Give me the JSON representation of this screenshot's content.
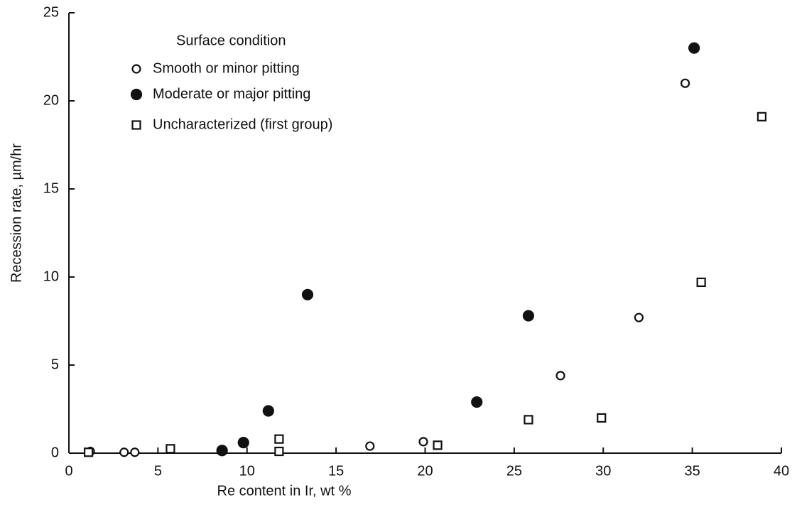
{
  "chart_data": {
    "type": "scatter",
    "x_label": "Re content in Ir, wt %",
    "y_label": "Recession rate, µm/hr",
    "legend_title": "Surface condition",
    "legend_location": "upper left",
    "xlim": [
      0,
      40
    ],
    "xticks": [
      0,
      5,
      10,
      15,
      20,
      25,
      30,
      35,
      40
    ],
    "ylim": [
      0,
      25
    ],
    "yticks": [
      0,
      5,
      10,
      15,
      20,
      25
    ],
    "grid": false,
    "series": [
      {
        "name": "Smooth or minor pitting",
        "color": "#111111",
        "marker": "open-circle",
        "x": [
          1.2,
          3.1,
          3.7,
          16.9,
          19.9,
          27.6,
          32.0,
          34.6
        ],
        "values": [
          0.1,
          0.05,
          0.05,
          0.4,
          0.65,
          4.4,
          7.7,
          21.0
        ]
      },
      {
        "name": "Moderate or major pitting",
        "color": "#111111",
        "marker": "filled-circle",
        "x": [
          8.6,
          9.8,
          11.2,
          13.4,
          22.9,
          25.8,
          35.1
        ],
        "values": [
          0.15,
          0.6,
          2.4,
          9.0,
          2.9,
          7.8,
          23.0
        ]
      },
      {
        "name": "Uncharacterized (first group)",
        "color": "#111111",
        "marker": "open-square",
        "x": [
          1.1,
          5.7,
          11.8,
          11.8,
          20.7,
          25.8,
          29.9,
          35.5,
          38.9
        ],
        "values": [
          0.05,
          0.25,
          0.8,
          0.1,
          0.45,
          1.9,
          2.0,
          9.7,
          19.1
        ]
      }
    ]
  }
}
